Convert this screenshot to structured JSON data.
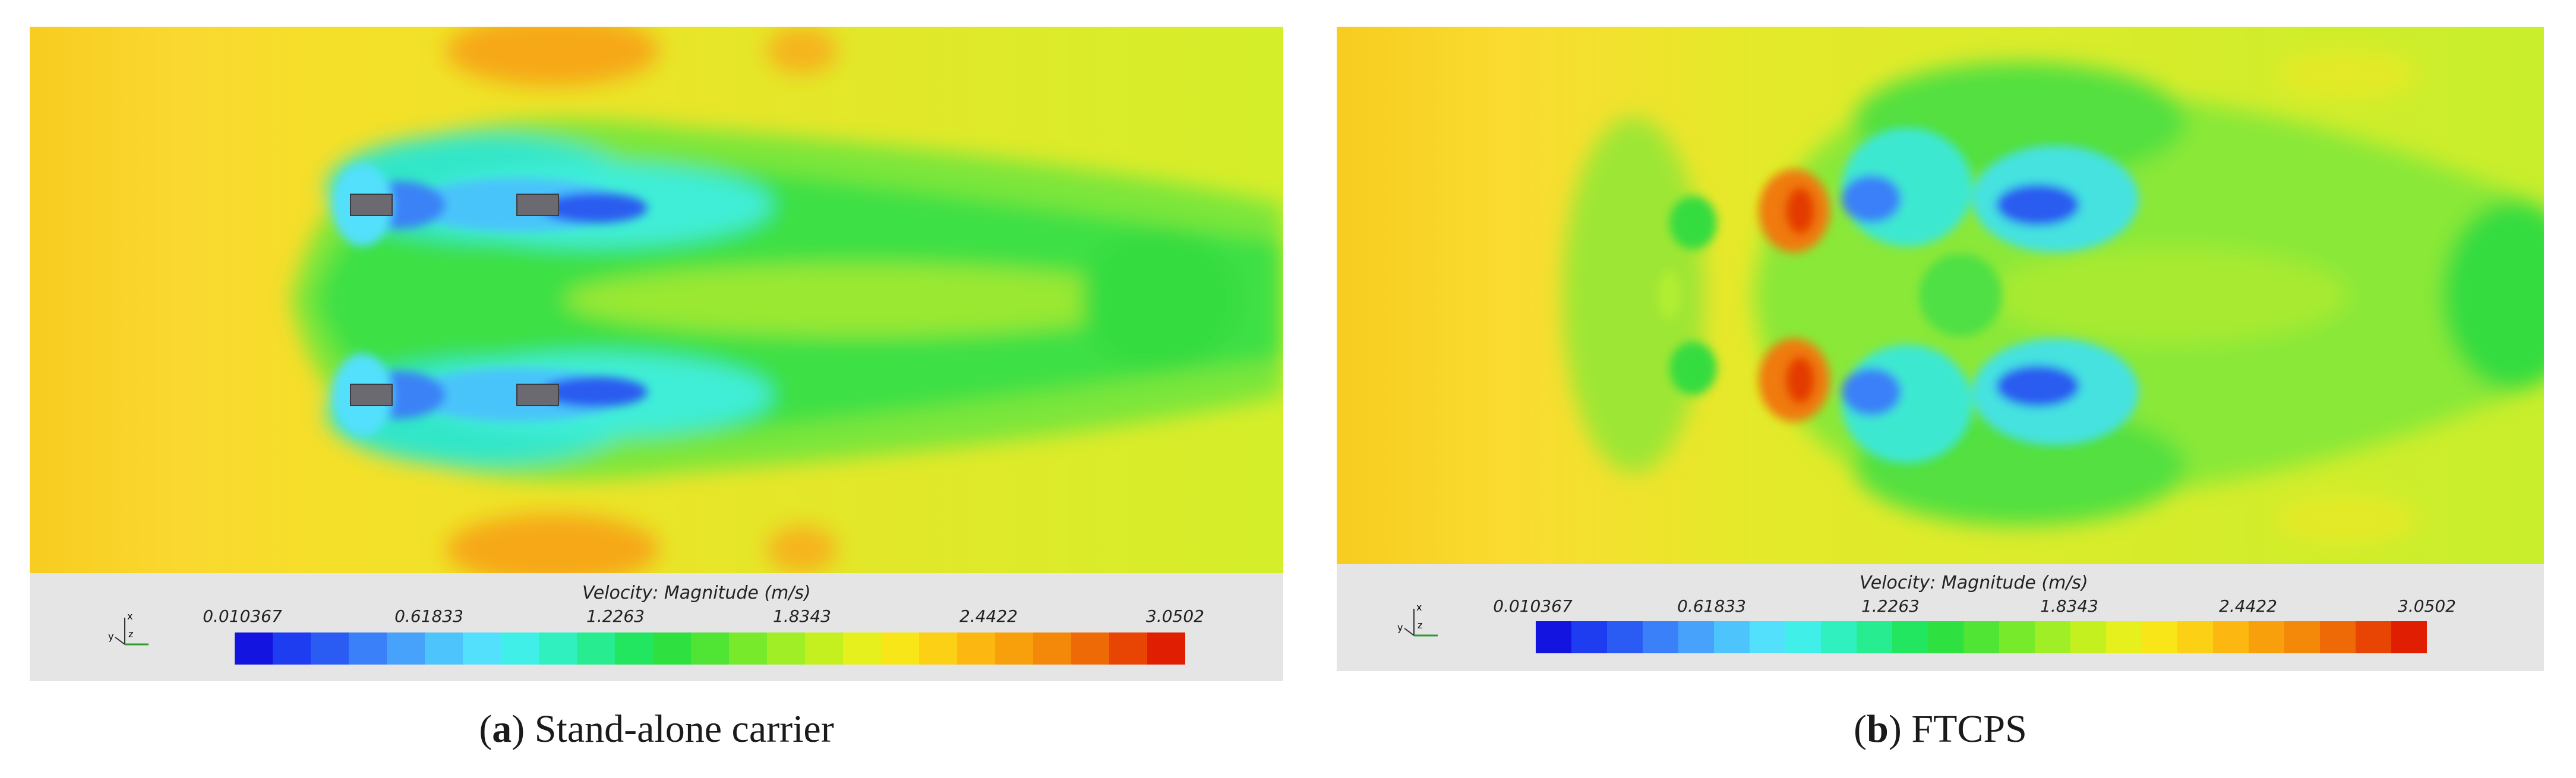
{
  "panels": [
    {
      "id": "a",
      "colorbar": {
        "title": "Velocity: Magnitude (m/s)",
        "ticks": [
          "0.010367",
          "0.61833",
          "1.2263",
          "1.8343",
          "2.4422",
          "3.0502"
        ]
      },
      "caption": {
        "letter": "a",
        "text": "Stand-alone carrier"
      }
    },
    {
      "id": "b",
      "colorbar": {
        "title": "Velocity: Magnitude (m/s)",
        "ticks": [
          "0.010367",
          "0.61833",
          "1.2263",
          "1.8343",
          "2.4422",
          "3.0502"
        ]
      },
      "caption": {
        "letter": "b",
        "text": "FTCPS"
      }
    }
  ],
  "triad": {
    "x": "x",
    "y": "y",
    "z": "z"
  },
  "colormap": [
    "#1414e0",
    "#1e3cf0",
    "#2a5cf4",
    "#3a80f8",
    "#46a2fa",
    "#4ec4fc",
    "#52e0fc",
    "#40f0e8",
    "#30f0c0",
    "#28ec90",
    "#22e660",
    "#2ee040",
    "#50e434",
    "#78ea2c",
    "#a0ee26",
    "#c4f020",
    "#e6f01c",
    "#f8e618",
    "#fcd014",
    "#fcb810",
    "#f8a00c",
    "#f48808",
    "#ee6a06",
    "#e84404",
    "#e01e02"
  ]
}
